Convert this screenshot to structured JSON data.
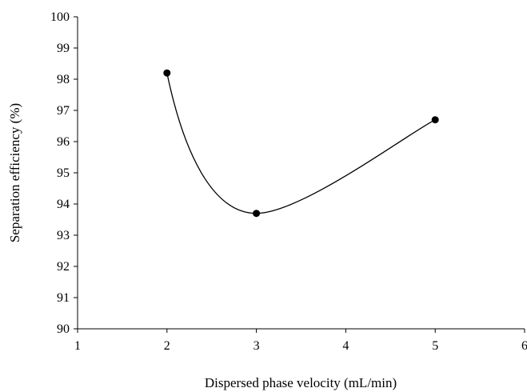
{
  "chart_data": {
    "type": "scatter",
    "title": "",
    "xlabel": "Dispersed phase velocity (mL/min)",
    "ylabel": "Separation efficiency (%)",
    "xlim": [
      1,
      6
    ],
    "ylim": [
      90,
      100
    ],
    "x_ticks": [
      "1",
      "2",
      "3",
      "4",
      "5",
      "6"
    ],
    "y_ticks": [
      "90",
      "91",
      "92",
      "93",
      "94",
      "95",
      "96",
      "97",
      "98",
      "99",
      "100"
    ],
    "grid": false,
    "legend": "none",
    "line": "smoothed curve through points",
    "series": [
      {
        "x": [
          2,
          3,
          5
        ],
        "y": [
          98.2,
          93.7,
          96.7
        ]
      }
    ]
  }
}
